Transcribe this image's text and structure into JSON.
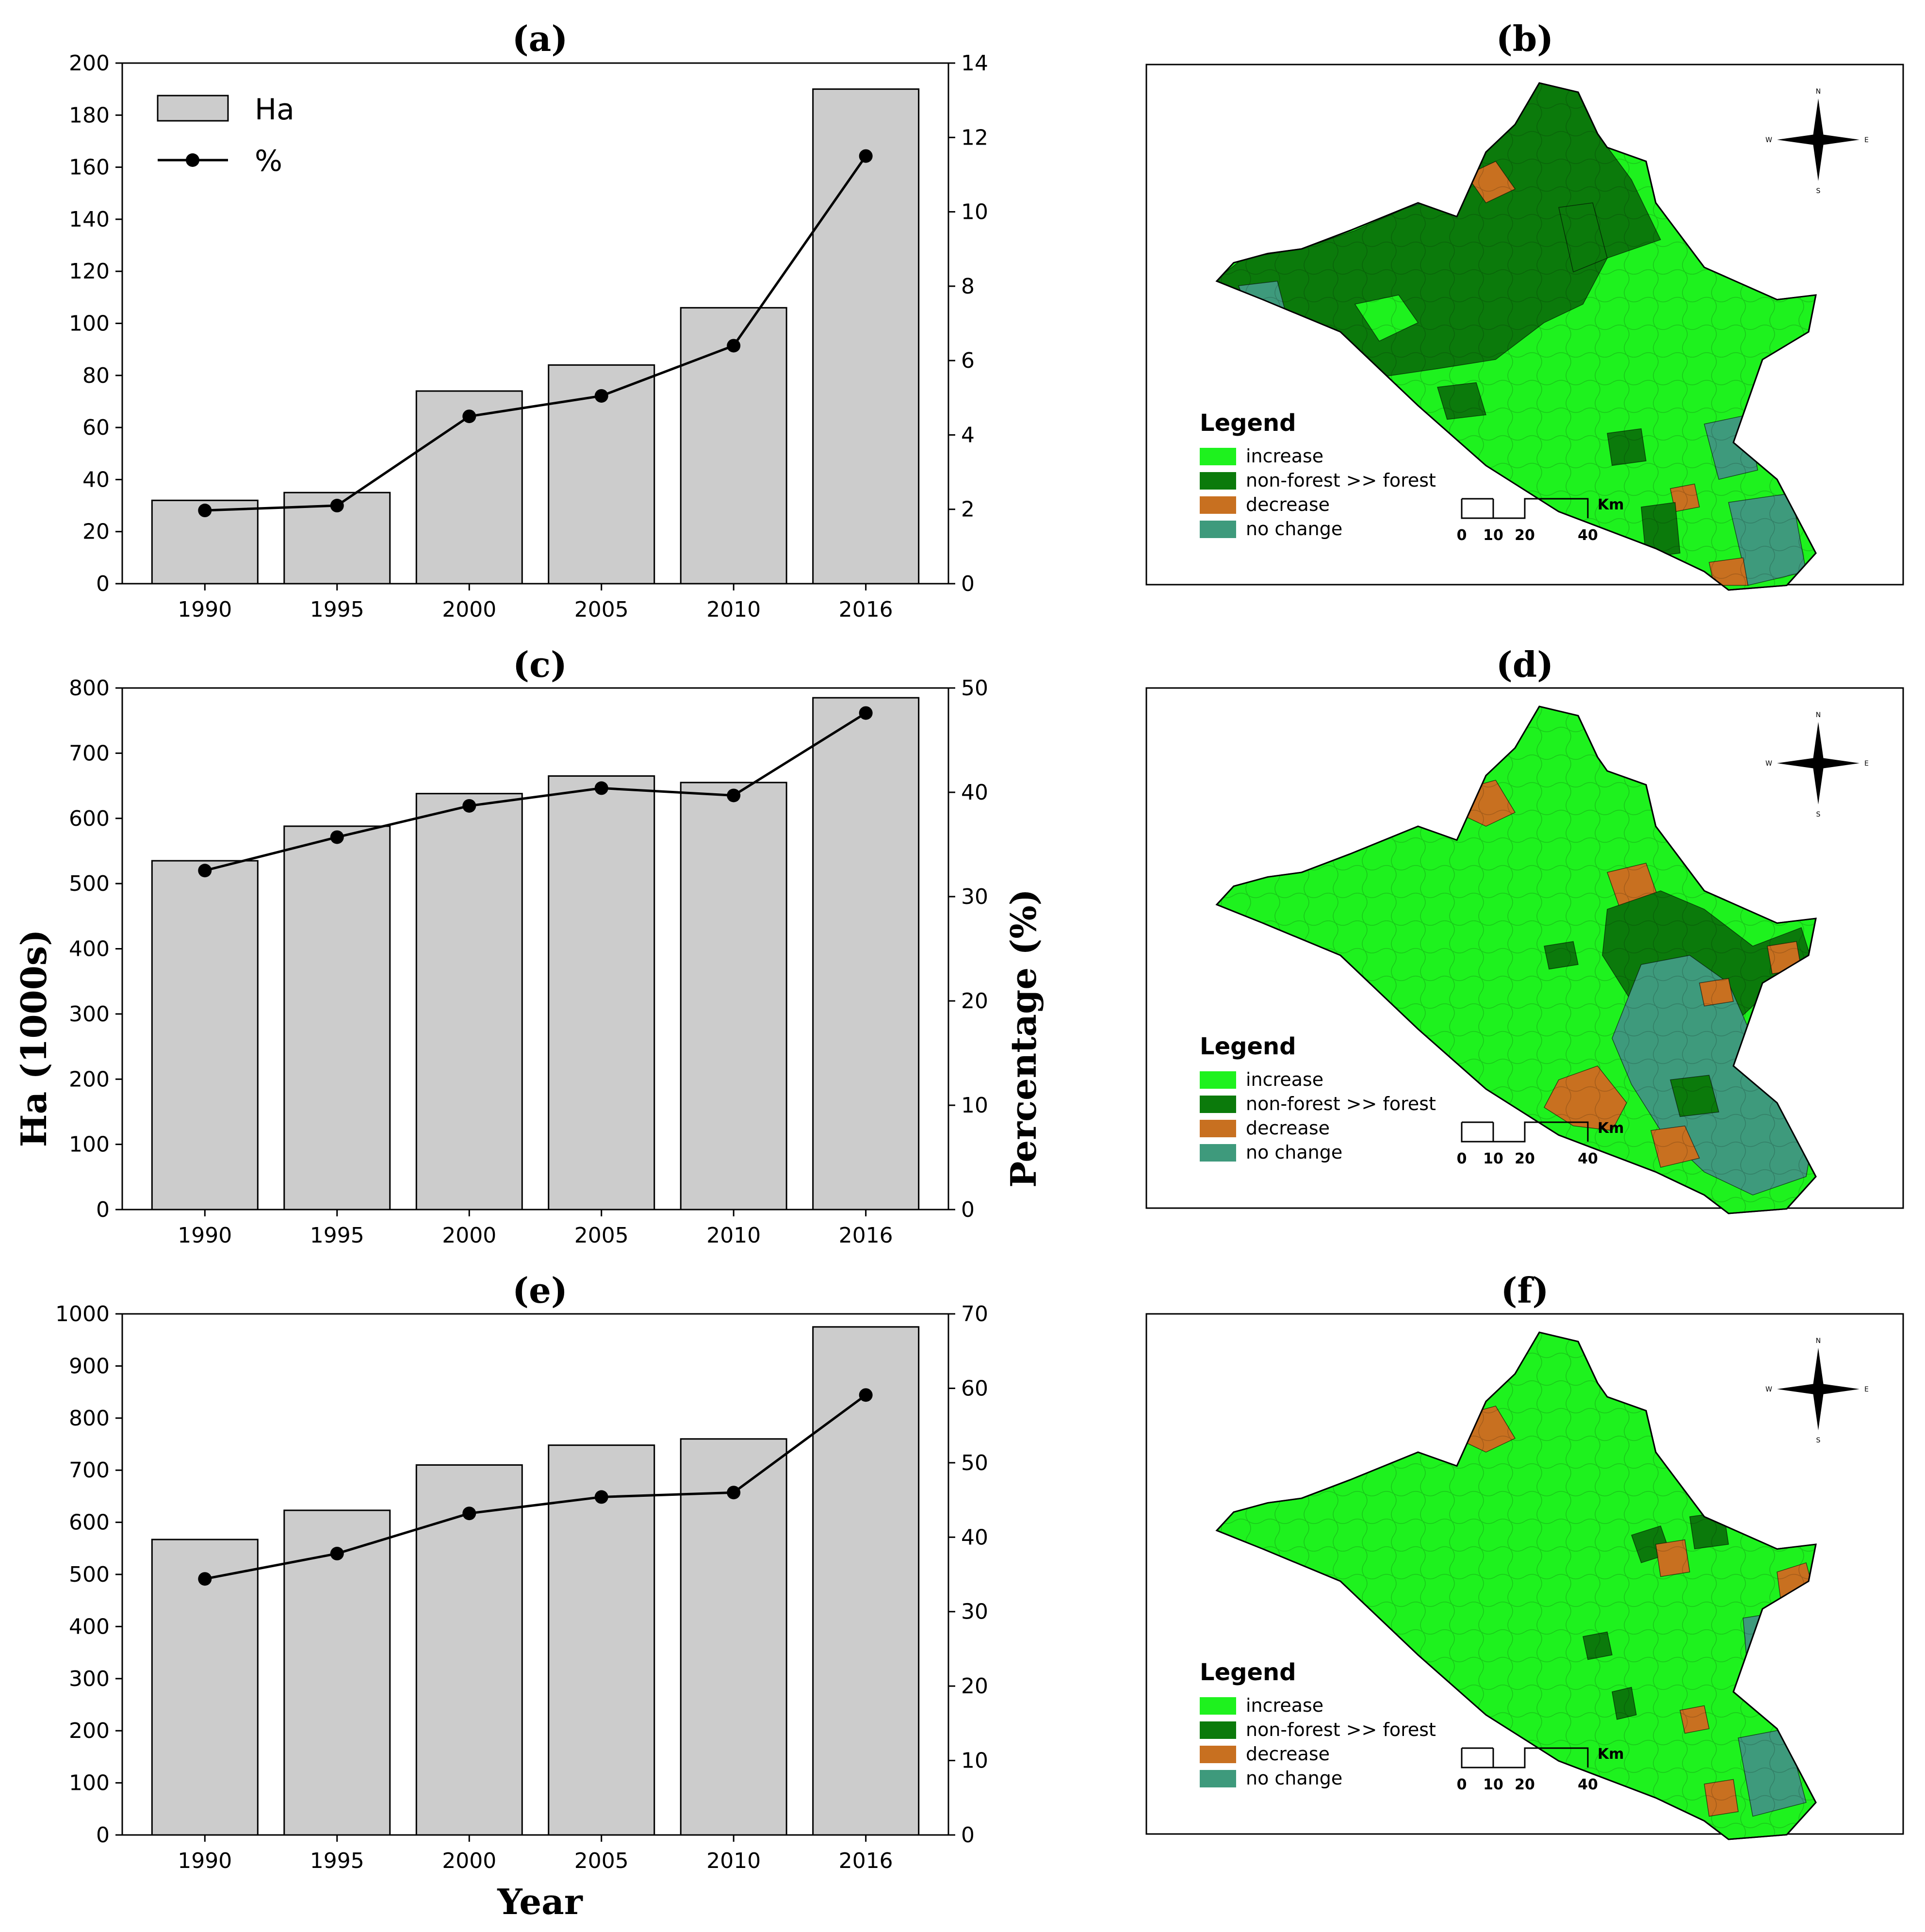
{
  "chart_data": [
    {
      "panel": "(a)",
      "type": "bar+line",
      "categories": [
        "1990",
        "1995",
        "2000",
        "2005",
        "2010",
        "2016"
      ],
      "series": [
        {
          "name": "Ha",
          "type": "bar",
          "values": [
            32,
            35,
            74,
            84,
            106,
            190
          ]
        },
        {
          "name": "%",
          "type": "line",
          "values": [
            1.97,
            2.1,
            4.5,
            5.05,
            6.4,
            11.5
          ]
        }
      ],
      "ylim": [
        0,
        200
      ],
      "y2lim": [
        0,
        14
      ],
      "yticks": [
        "0",
        "20",
        "40",
        "60",
        "80",
        "100",
        "120",
        "140",
        "160",
        "180",
        "200"
      ],
      "y2ticks": [
        "0",
        "2",
        "4",
        "6",
        "8",
        "10",
        "12",
        "14"
      ],
      "legend": [
        "Ha",
        "%"
      ],
      "legend_position": "top-left"
    },
    {
      "panel": "(c)",
      "type": "bar+line",
      "categories": [
        "1990",
        "1995",
        "2000",
        "2005",
        "2010",
        "2016"
      ],
      "series": [
        {
          "name": "Ha",
          "type": "bar",
          "values": [
            535,
            588,
            638,
            665,
            655,
            785
          ]
        },
        {
          "name": "%",
          "type": "line",
          "values": [
            32.5,
            35.7,
            38.7,
            40.4,
            39.7,
            47.6
          ]
        }
      ],
      "ylim": [
        0,
        800
      ],
      "y2lim": [
        0,
        50
      ],
      "yticks": [
        "0",
        "100",
        "200",
        "300",
        "400",
        "500",
        "600",
        "700",
        "800"
      ],
      "y2ticks": [
        "0",
        "10",
        "20",
        "30",
        "40",
        "50"
      ],
      "ylabel": "Ha (1000s)",
      "y2label": "Percentage (%)"
    },
    {
      "panel": "(e)",
      "type": "bar+line",
      "categories": [
        "1990",
        "1995",
        "2000",
        "2005",
        "2010",
        "2016"
      ],
      "series": [
        {
          "name": "Ha",
          "type": "bar",
          "values": [
            567,
            623,
            710,
            748,
            760,
            975
          ]
        },
        {
          "name": "%",
          "type": "line",
          "values": [
            34.4,
            37.8,
            43.2,
            45.4,
            46.0,
            59.1
          ]
        }
      ],
      "ylim": [
        0,
        1000
      ],
      "y2lim": [
        0,
        70
      ],
      "yticks": [
        "0",
        "100",
        "200",
        "300",
        "400",
        "500",
        "600",
        "700",
        "800",
        "900",
        "1000"
      ],
      "y2ticks": [
        "0",
        "10",
        "20",
        "30",
        "40",
        "50",
        "60",
        "70"
      ],
      "xlabel": "Year"
    }
  ],
  "maps": [
    {
      "panel": "(b)"
    },
    {
      "panel": "(d)"
    },
    {
      "panel": "(f)"
    }
  ],
  "map_legend": {
    "title": "Legend",
    "items": [
      {
        "label": "increase",
        "color": "#1ef21e"
      },
      {
        "label": "non-forest >> forest",
        "color": "#0b7a0b"
      },
      {
        "label": "decrease",
        "color": "#c87020"
      },
      {
        "label": "no change",
        "color": "#3e9a7c"
      }
    ]
  },
  "scalebar": {
    "ticks": [
      "0",
      "10",
      "20",
      "40"
    ],
    "unit": "Km"
  },
  "compass": {
    "n": "N",
    "s": "S",
    "e": "E",
    "w": "W"
  },
  "colors": {
    "bar": "#cccccc",
    "line": "#000000"
  }
}
